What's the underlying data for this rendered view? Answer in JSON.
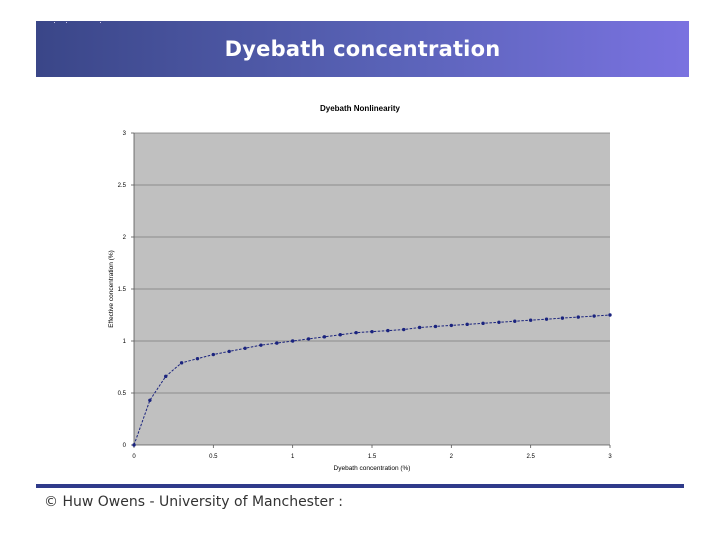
{
  "slide": {
    "title": "Dyebath concentration",
    "footer": "© Huw Owens - University of Manchester :"
  },
  "colors": {
    "title_bar_start": "#3a4688",
    "title_bar_end": "#7a72e0",
    "plot_background": "#c0c0c0",
    "series_color": "#1a237e",
    "footer_line": "#2f3a8a"
  },
  "chart_data": {
    "type": "line",
    "title": "Dyebath  Nonlinearity",
    "xlabel": "Dyebath concentration (%)",
    "ylabel": "Effective concentration (%)",
    "xlim": [
      0,
      3
    ],
    "ylim": [
      0,
      3
    ],
    "x_ticks": [
      "0",
      "0.5",
      "1",
      "1.5",
      "2",
      "2.5",
      "3"
    ],
    "y_ticks": [
      "0",
      "0.5",
      "1",
      "1.5",
      "2",
      "2.5",
      "3"
    ],
    "grid": "horizontal",
    "legend": "none",
    "series": [
      {
        "x": [
          0,
          0.1,
          0.2,
          0.3,
          0.4,
          0.5,
          0.6,
          0.7,
          0.8,
          0.9,
          1.0,
          1.1,
          1.2,
          1.3,
          1.4,
          1.5,
          1.6,
          1.7,
          1.8,
          1.9,
          2.0,
          2.1,
          2.2,
          2.3,
          2.4,
          2.5,
          2.6,
          2.7,
          2.8,
          2.9,
          3.0
        ],
        "y": [
          0,
          0.43,
          0.66,
          0.79,
          0.83,
          0.87,
          0.9,
          0.93,
          0.96,
          0.98,
          1.0,
          1.02,
          1.04,
          1.06,
          1.08,
          1.09,
          1.1,
          1.11,
          1.13,
          1.14,
          1.15,
          1.16,
          1.17,
          1.18,
          1.19,
          1.2,
          1.21,
          1.22,
          1.23,
          1.24,
          1.25
        ]
      }
    ]
  }
}
